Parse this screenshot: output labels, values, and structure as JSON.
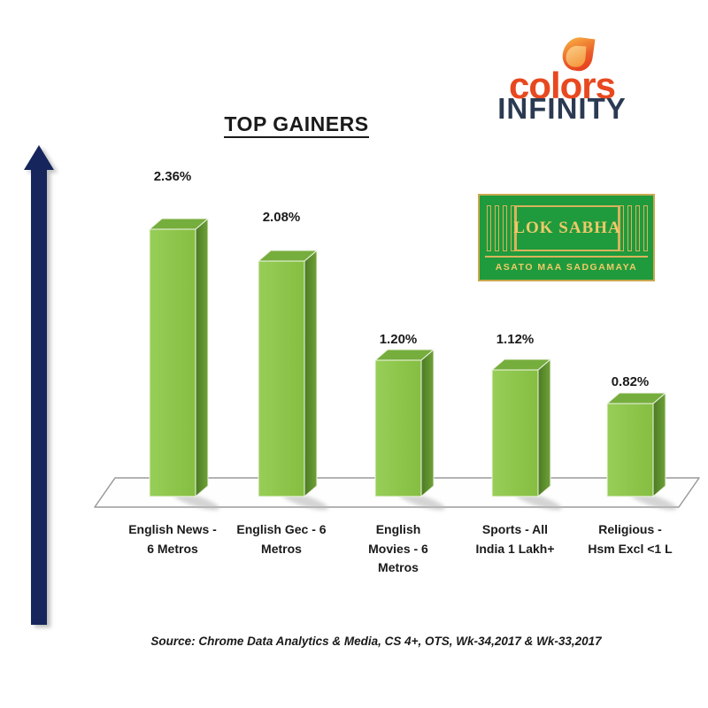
{
  "title": "TOP GAINERS",
  "chart_data": {
    "type": "bar",
    "title": "TOP GAINERS",
    "categories": [
      "English News -\n6 Metros",
      "English Gec - 6\nMetros",
      "English\nMovies - 6\nMetros",
      "Sports - All\nIndia 1 Lakh+",
      "Religious -\nHsm Excl <1 L"
    ],
    "values": [
      2.36,
      2.08,
      1.2,
      1.12,
      0.82
    ],
    "value_labels": [
      "2.36%",
      "2.08%",
      "1.20%",
      "1.12%",
      "0.82%"
    ],
    "xlabel": "",
    "ylabel": "",
    "ylim": [
      0,
      2.6
    ],
    "grid": "off",
    "legend": "none",
    "style": "3d-green-bars-on-white-floor",
    "bar_colors": {
      "front_light": "#97CE58",
      "front": "#85BE41",
      "top": "#76AE3D",
      "side_dark": "#4B7A24",
      "side_light": "#6FA238",
      "edge": "#F2F6EA",
      "floor_stroke": "#9A9A9A"
    }
  },
  "arrow": {
    "color": "#13265B"
  },
  "source": "Source: Chrome Data Analytics & Media, CS 4+,  OTS, Wk-34,2017 & Wk-33,2017",
  "logos": {
    "colors_infinity": {
      "word1": "colors",
      "word2": "INFINITY",
      "word1_color": "#E8481F",
      "word2_color": "#2B3A52",
      "flame_colors": [
        "#F6A43E",
        "#E63A1D",
        "#F49336"
      ]
    },
    "lok_sabha": {
      "line1": "LOK SABHA",
      "line2": "ASATO MAA SADGAMAYA",
      "bg_color": "#1F9B3D",
      "gold_color": "#F2C968"
    }
  }
}
